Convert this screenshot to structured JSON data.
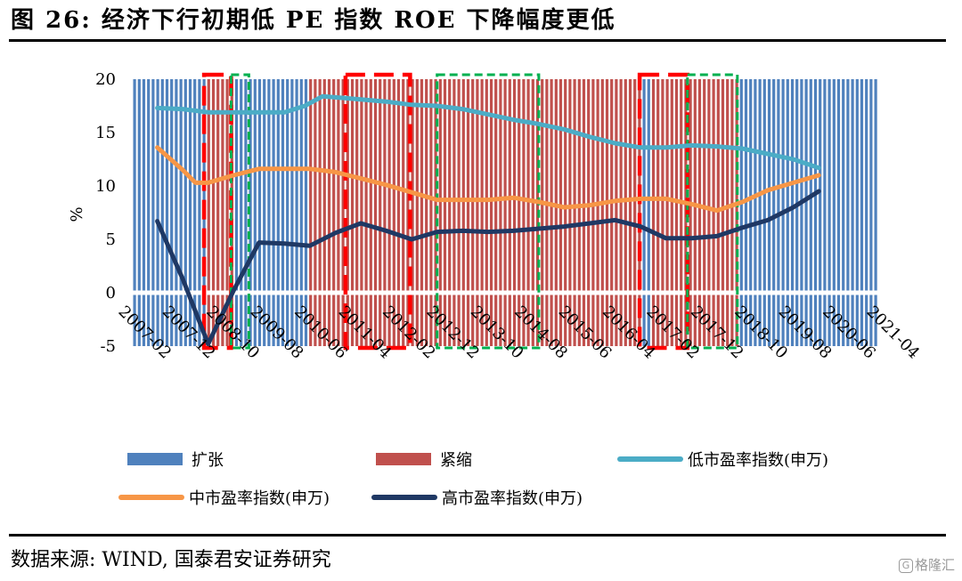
{
  "figure": {
    "title": "图 26: 经济下行初期低 PE 指数 ROE 下降幅度更低",
    "source": "数据来源: WIND, 国泰君安证券研究",
    "watermark": "格隆汇"
  },
  "chart_data": {
    "type": "line",
    "title": "经济下行初期低 PE 指数 ROE 下降幅度更低",
    "ylabel": "%",
    "xlabel": "",
    "ylim": [
      -5,
      20
    ],
    "yticks": [
      20,
      15,
      10,
      5,
      0,
      -5
    ],
    "x_range": [
      2007.0,
      2021.67
    ],
    "x_tick_labels": [
      "2007-02",
      "2007-12",
      "2008-10",
      "2009-08",
      "2010-06",
      "2011-04",
      "2012-02",
      "2012-12",
      "2013-10",
      "2014-08",
      "2015-06",
      "2016-04",
      "2017-02",
      "2017-12",
      "2018-10",
      "2019-08",
      "2020-06",
      "2021-04"
    ],
    "colors": {
      "expansion": "#4f81bd",
      "contraction": "#c0504d",
      "low_pe": "#4bacc6",
      "mid_pe": "#f79646",
      "high_pe": "#1f3864",
      "red_box": "#ff0000",
      "green_box": "#00b050"
    },
    "regimes": [
      {
        "type": "expansion",
        "start": 2007.0,
        "end": 2008.42
      },
      {
        "type": "contraction",
        "start": 2008.42,
        "end": 2009.0
      },
      {
        "type": "expansion",
        "start": 2009.0,
        "end": 2010.42
      },
      {
        "type": "contraction",
        "start": 2010.42,
        "end": 2017.0
      },
      {
        "type": "expansion",
        "start": 2017.0,
        "end": 2017.17
      },
      {
        "type": "contraction",
        "start": 2017.17,
        "end": 2018.95
      },
      {
        "type": "expansion",
        "start": 2018.95,
        "end": 2021.67
      }
    ],
    "boxes": [
      {
        "color": "red",
        "start": 2008.42,
        "end": 2008.95
      },
      {
        "color": "green",
        "start": 2008.95,
        "end": 2009.3
      },
      {
        "color": "red",
        "start": 2011.2,
        "end": 2012.47
      },
      {
        "color": "green",
        "start": 2013.0,
        "end": 2015.0
      },
      {
        "color": "red",
        "start": 2016.98,
        "end": 2017.92
      },
      {
        "color": "green",
        "start": 2017.92,
        "end": 2018.9
      }
    ],
    "series": [
      {
        "name": "低市盈率指数(申万)",
        "color_key": "low_pe",
        "x": [
          2007.5,
          2008.0,
          2008.5,
          2009.0,
          2009.5,
          2010.0,
          2010.4,
          2010.75,
          2011.0,
          2011.5,
          2012.0,
          2012.5,
          2013.0,
          2013.5,
          2014.0,
          2014.5,
          2015.0,
          2015.5,
          2016.0,
          2016.5,
          2017.0,
          2017.5,
          2018.0,
          2018.5,
          2019.0,
          2019.5,
          2020.0,
          2020.5
        ],
        "values": [
          17.3,
          17.2,
          16.9,
          16.9,
          16.9,
          16.9,
          17.5,
          18.4,
          18.3,
          18.1,
          17.9,
          17.6,
          17.5,
          17.2,
          16.7,
          16.2,
          15.8,
          15.3,
          14.6,
          14.0,
          13.6,
          13.6,
          13.8,
          13.7,
          13.5,
          13.0,
          12.5,
          11.7
        ]
      },
      {
        "name": "中市盈率指数(申万)",
        "color_key": "mid_pe",
        "x": [
          2007.5,
          2008.0,
          2008.25,
          2008.5,
          2009.0,
          2009.5,
          2010.0,
          2010.5,
          2011.0,
          2011.5,
          2012.0,
          2012.5,
          2013.0,
          2013.5,
          2014.0,
          2014.5,
          2015.0,
          2015.5,
          2016.0,
          2016.5,
          2017.0,
          2017.5,
          2018.0,
          2018.5,
          2019.0,
          2019.5,
          2020.0,
          2020.5
        ],
        "values": [
          13.6,
          11.5,
          10.3,
          10.3,
          11.0,
          11.6,
          11.6,
          11.6,
          11.3,
          10.7,
          10.1,
          9.4,
          8.7,
          8.7,
          8.7,
          8.9,
          8.5,
          8.0,
          8.2,
          8.6,
          8.8,
          8.8,
          8.3,
          7.7,
          8.5,
          9.6,
          10.3,
          11.0
        ]
      },
      {
        "name": "高市盈率指数(申万)",
        "color_key": "high_pe",
        "x": [
          2007.5,
          2008.0,
          2008.5,
          2009.0,
          2009.5,
          2010.0,
          2010.5,
          2011.0,
          2011.5,
          2012.0,
          2012.5,
          2013.0,
          2013.5,
          2014.0,
          2014.5,
          2015.0,
          2015.5,
          2016.0,
          2016.5,
          2017.0,
          2017.5,
          2018.0,
          2018.5,
          2019.0,
          2019.5,
          2020.0,
          2020.5
        ],
        "values": [
          6.7,
          1.3,
          -4.8,
          0.2,
          4.7,
          4.6,
          4.4,
          5.6,
          6.5,
          5.8,
          5.0,
          5.7,
          5.8,
          5.7,
          5.8,
          6.0,
          6.2,
          6.5,
          6.8,
          6.2,
          5.1,
          5.1,
          5.3,
          6.1,
          6.8,
          8.0,
          9.5
        ]
      }
    ],
    "legend": [
      {
        "label": "扩张",
        "kind": "bar",
        "color_key": "expansion"
      },
      {
        "label": "紧缩",
        "kind": "bar",
        "color_key": "contraction"
      },
      {
        "label": "低市盈率指数(申万)",
        "kind": "line",
        "color_key": "low_pe"
      },
      {
        "label": "中市盈率指数(申万)",
        "kind": "line",
        "color_key": "mid_pe"
      },
      {
        "label": "高市盈率指数(申万)",
        "kind": "line",
        "color_key": "high_pe"
      }
    ]
  }
}
